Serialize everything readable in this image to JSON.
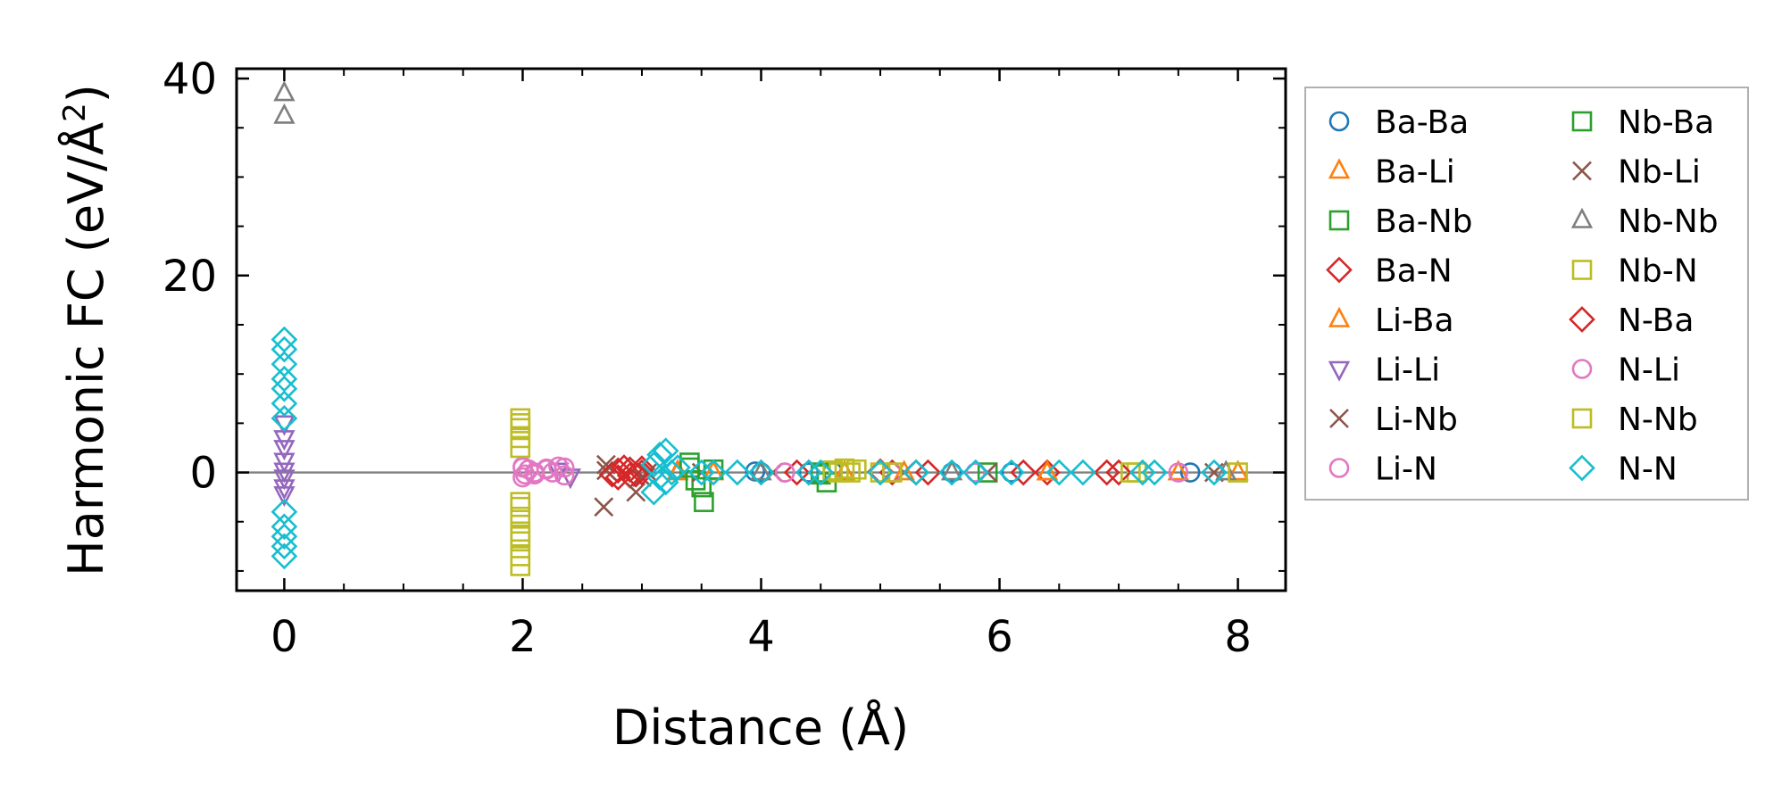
{
  "chart_data": {
    "type": "scatter",
    "xlabel": "Distance (Å)",
    "ylabel_prefix": "Harmonic FC (eV/Å",
    "ylabel_sup": "2",
    "ylabel_suffix": ")",
    "xlim": [
      -0.4,
      8.4
    ],
    "ylim": [
      -12,
      41
    ],
    "xticks": [
      0,
      2,
      4,
      6,
      8
    ],
    "xtick_labels": [
      "0",
      "2",
      "4",
      "6",
      "8"
    ],
    "yticks": [
      0,
      20,
      40
    ],
    "ytick_labels": [
      "0",
      "20",
      "40"
    ],
    "zero_line": true,
    "grid": false,
    "legend_placement": "outside-right",
    "series": [
      {
        "name": "Ba-Ba",
        "color": "#1f77b4",
        "marker": "circle",
        "points": [
          [
            3.95,
            0.1
          ],
          [
            4.0,
            0.0
          ],
          [
            4.4,
            0.0
          ],
          [
            4.6,
            0.1
          ],
          [
            5.6,
            0.0
          ],
          [
            6.1,
            0.0
          ],
          [
            7.6,
            0.0
          ]
        ]
      },
      {
        "name": "Ba-Li",
        "color": "#ff7f0e",
        "marker": "triangle-up",
        "points": [
          [
            3.3,
            0.1
          ],
          [
            3.6,
            0.0
          ],
          [
            4.7,
            0.0
          ],
          [
            5.2,
            0.0
          ],
          [
            6.4,
            0.0
          ],
          [
            7.5,
            0.0
          ]
        ]
      },
      {
        "name": "Ba-Nb",
        "color": "#2ca02c",
        "marker": "square",
        "points": [
          [
            3.4,
            1.0
          ],
          [
            3.5,
            -1.5
          ],
          [
            3.52,
            -3.0
          ],
          [
            3.6,
            0.3
          ],
          [
            4.5,
            -0.2
          ],
          [
            4.55,
            -1.0
          ],
          [
            5.9,
            0.0
          ]
        ]
      },
      {
        "name": "Ba-N",
        "color": "#d62728",
        "marker": "diamond",
        "points": [
          [
            2.8,
            0.2
          ],
          [
            2.85,
            0.5
          ],
          [
            2.9,
            -0.3
          ],
          [
            3.0,
            0.4
          ],
          [
            4.3,
            0.0
          ],
          [
            5.0,
            0.1
          ],
          [
            5.1,
            0.0
          ],
          [
            5.3,
            0.0
          ],
          [
            6.4,
            0.0
          ],
          [
            6.9,
            0.0
          ]
        ]
      },
      {
        "name": "Li-Ba",
        "color": "#ff7f0e",
        "marker": "triangle-up",
        "points": [
          [
            3.3,
            0.0
          ],
          [
            4.7,
            0.0
          ],
          [
            6.4,
            0.0
          ],
          [
            8.0,
            0.0
          ]
        ]
      },
      {
        "name": "Li-Li",
        "color": "#9467bd",
        "marker": "triangle-down",
        "points": [
          [
            0,
            5.0
          ],
          [
            0,
            3.5
          ],
          [
            0,
            2.5
          ],
          [
            0,
            1.2
          ],
          [
            0,
            0.2
          ],
          [
            0,
            -0.5
          ],
          [
            0,
            -1.5
          ],
          [
            0,
            -2.2
          ],
          [
            2.4,
            -0.4
          ],
          [
            2.3,
            0.2
          ]
        ]
      },
      {
        "name": "Li-Nb",
        "color": "#8c564b",
        "marker": "x",
        "points": [
          [
            2.7,
            0.8
          ],
          [
            2.68,
            -3.5
          ],
          [
            2.95,
            -2.0
          ],
          [
            3.05,
            0.0
          ],
          [
            3.5,
            0.0
          ],
          [
            5.2,
            0.0
          ],
          [
            5.9,
            0.0
          ],
          [
            7.8,
            0.0
          ]
        ]
      },
      {
        "name": "Li-N",
        "color": "#e377c2",
        "marker": "circle",
        "points": [
          [
            2.0,
            0.6
          ],
          [
            2.02,
            -0.2
          ],
          [
            2.1,
            0.0
          ],
          [
            2.2,
            0.4
          ],
          [
            2.3,
            0.6
          ],
          [
            2.35,
            -0.3
          ],
          [
            4.2,
            0.0
          ],
          [
            5.1,
            0.0
          ]
        ]
      },
      {
        "name": "Nb-Ba",
        "color": "#2ca02c",
        "marker": "square",
        "points": [
          [
            3.4,
            0.5
          ],
          [
            3.45,
            -0.8
          ],
          [
            4.5,
            0.0
          ]
        ]
      },
      {
        "name": "Nb-Li",
        "color": "#8c564b",
        "marker": "x",
        "points": [
          [
            2.7,
            0.2
          ],
          [
            3.0,
            -0.5
          ],
          [
            4.1,
            0.0
          ]
        ]
      },
      {
        "name": "Nb-Nb",
        "color": "#7f7f7f",
        "marker": "triangle-up",
        "points": [
          [
            0,
            38.5
          ],
          [
            0,
            36.2
          ],
          [
            4.0,
            0.0
          ],
          [
            5.6,
            0.0
          ],
          [
            7.9,
            0.0
          ]
        ]
      },
      {
        "name": "Nb-N",
        "color": "#bcbd22",
        "marker": "square",
        "points": [
          [
            1.98,
            5.5
          ],
          [
            1.98,
            4.5
          ],
          [
            1.98,
            3.5
          ],
          [
            1.98,
            2.5
          ],
          [
            1.98,
            -3.0
          ],
          [
            1.98,
            -4.5
          ],
          [
            1.98,
            -6.0
          ],
          [
            1.98,
            -7.0
          ],
          [
            1.98,
            -8.5
          ],
          [
            1.98,
            -9.5
          ],
          [
            4.6,
            0.2
          ],
          [
            4.7,
            0.4
          ],
          [
            4.8,
            0.3
          ],
          [
            5.0,
            0.0
          ],
          [
            7.15,
            0.0
          ],
          [
            8.0,
            0.0
          ]
        ]
      },
      {
        "name": "N-Ba",
        "color": "#d62728",
        "marker": "diamond",
        "points": [
          [
            2.75,
            -0.2
          ],
          [
            2.8,
            -0.5
          ],
          [
            2.9,
            0.3
          ],
          [
            2.95,
            -0.2
          ],
          [
            3.0,
            0.0
          ],
          [
            4.4,
            0.0
          ],
          [
            5.4,
            0.0
          ],
          [
            6.2,
            0.0
          ],
          [
            7.0,
            0.0
          ]
        ]
      },
      {
        "name": "N-Li",
        "color": "#e377c2",
        "marker": "circle",
        "points": [
          [
            2.0,
            0.5
          ],
          [
            2.0,
            -0.5
          ],
          [
            2.05,
            0.3
          ],
          [
            2.1,
            -0.2
          ],
          [
            2.2,
            0.3
          ],
          [
            2.25,
            0.0
          ],
          [
            2.35,
            0.5
          ],
          [
            4.2,
            0.0
          ],
          [
            5.8,
            0.0
          ],
          [
            7.5,
            0.0
          ]
        ]
      },
      {
        "name": "N-Nb",
        "color": "#bcbd22",
        "marker": "square",
        "points": [
          [
            1.98,
            5.0
          ],
          [
            1.98,
            -3.5
          ],
          [
            1.98,
            -6.5
          ],
          [
            4.65,
            0.0
          ],
          [
            4.75,
            0.0
          ],
          [
            5.1,
            0.0
          ],
          [
            7.1,
            0.0
          ]
        ]
      },
      {
        "name": "N-N",
        "color": "#17becf",
        "marker": "diamond",
        "points": [
          [
            0,
            13.5
          ],
          [
            0,
            12.5
          ],
          [
            0,
            11.0
          ],
          [
            0,
            9.5
          ],
          [
            0,
            8.5
          ],
          [
            0,
            7.0
          ],
          [
            0,
            5.5
          ],
          [
            0,
            -4.0
          ],
          [
            0,
            -5.5
          ],
          [
            0,
            -6.5
          ],
          [
            0,
            -7.5
          ],
          [
            0,
            -8.5
          ],
          [
            3.1,
            0.8
          ],
          [
            3.15,
            1.8
          ],
          [
            3.2,
            2.2
          ],
          [
            3.15,
            -0.5
          ],
          [
            3.2,
            -1.0
          ],
          [
            3.1,
            -2.0
          ],
          [
            3.25,
            0.0
          ],
          [
            3.3,
            0.5
          ],
          [
            3.5,
            0.0
          ],
          [
            3.6,
            0.0
          ],
          [
            3.8,
            0.0
          ],
          [
            4.0,
            0.0
          ],
          [
            4.4,
            0.0
          ],
          [
            4.5,
            0.0
          ],
          [
            5.0,
            0.0
          ],
          [
            5.3,
            0.0
          ],
          [
            5.6,
            0.0
          ],
          [
            5.8,
            0.0
          ],
          [
            6.1,
            0.0
          ],
          [
            6.5,
            0.0
          ],
          [
            6.7,
            0.0
          ],
          [
            7.2,
            0.0
          ],
          [
            7.3,
            0.0
          ],
          [
            7.8,
            0.0
          ]
        ]
      }
    ]
  }
}
